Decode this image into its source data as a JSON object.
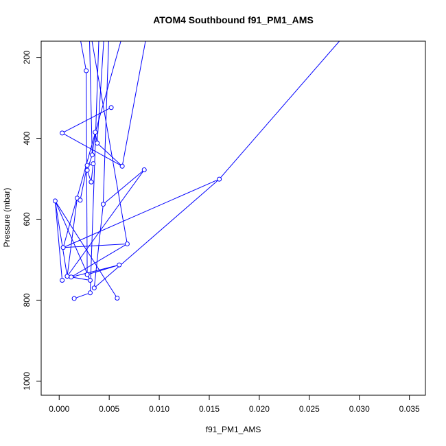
{
  "chart_data": {
    "type": "line",
    "title": "ATOM4 Southbound f91_PM1_AMS",
    "xlabel": "f91_PM1_AMS",
    "ylabel": "Pressure (mbar)",
    "xlim": [
      -0.0018,
      0.0366
    ],
    "ylim": [
      1035,
      160
    ],
    "y_reversed": true,
    "x_ticks": [
      0.0,
      0.005,
      0.01,
      0.015,
      0.02,
      0.025,
      0.03,
      0.035
    ],
    "x_tick_labels": [
      "0.000",
      "0.005",
      "0.010",
      "0.015",
      "0.020",
      "0.025",
      "0.030",
      "0.035"
    ],
    "y_ticks": [
      200,
      400,
      600,
      800,
      1000
    ],
    "y_tick_labels": [
      "200",
      "400",
      "600",
      "800",
      "1000"
    ],
    "grid": false,
    "colors": {
      "series": "#0000ff",
      "frame": "#000000",
      "background": "#ffffff"
    },
    "series": [
      {
        "marker": "open-circle",
        "points": [
          {
            "x": 0.0031,
            "y": 782,
            "marked": true
          },
          {
            "x": 0.0015,
            "y": 796,
            "marked": true
          },
          {
            "x": 0.0003,
            "y": 751,
            "marked": true
          },
          {
            "x": 0.0008,
            "y": 741,
            "marked": true
          },
          {
            "x": 0.0058,
            "y": 795,
            "marked": true
          },
          {
            "x": -0.0004,
            "y": 555,
            "marked": true
          },
          {
            "x": 0.0031,
            "y": 751,
            "marked": true
          },
          {
            "x": 0.0028,
            "y": 737,
            "marked": true
          },
          {
            "x": 0.006,
            "y": 713,
            "marked": true
          },
          {
            "x": 0.0012,
            "y": 743,
            "marked": true
          },
          {
            "x": 0.0068,
            "y": 661,
            "marked": true
          },
          {
            "x": 0.0004,
            "y": 670,
            "marked": true
          },
          {
            "x": 0.016,
            "y": 501,
            "marked": true
          },
          {
            "x": 0.0035,
            "y": 770,
            "marked": true
          },
          {
            "x": 0.0044,
            "y": 563,
            "marked": true
          },
          {
            "x": 0.0085,
            "y": 478,
            "marked": true
          },
          {
            "x": 0.0018,
            "y": 548,
            "marked": true
          },
          {
            "x": 0.0021,
            "y": 553,
            "marked": true
          },
          {
            "x": 0.0028,
            "y": 467,
            "marked": true
          },
          {
            "x": 0.0034,
            "y": 463,
            "marked": true
          },
          {
            "x": 0.0032,
            "y": 508,
            "marked": true
          },
          {
            "x": 0.0028,
            "y": 479,
            "marked": true
          },
          {
            "x": 0.0033,
            "y": 441,
            "marked": true
          },
          {
            "x": 0.0036,
            "y": 385,
            "marked": true
          },
          {
            "x": 0.0038,
            "y": 412,
            "marked": true
          },
          {
            "x": 0.0063,
            "y": 469,
            "marked": true
          },
          {
            "x": 0.0003,
            "y": 387,
            "marked": true
          },
          {
            "x": 0.0052,
            "y": 324,
            "marked": true
          },
          {
            "x": 0.0027,
            "y": 233,
            "marked": true
          },
          {
            "x": 0.002,
            "y": 140,
            "marked": false
          },
          {
            "x": 0.004,
            "y": 130,
            "marked": false
          },
          {
            "x": 0.003,
            "y": 120,
            "marked": false
          },
          {
            "x": 0.0045,
            "y": 140,
            "marked": false
          },
          {
            "x": 0.005,
            "y": 120,
            "marked": false
          },
          {
            "x": 0.009,
            "y": 110,
            "marked": false
          },
          {
            "x": 0.0065,
            "y": 130,
            "marked": false
          },
          {
            "x": 0.028,
            "y": 160,
            "marked": false
          }
        ],
        "segments": [
          [
            0,
            1
          ],
          [
            2,
            5
          ],
          [
            5,
            3
          ],
          [
            5,
            4
          ],
          [
            5,
            6
          ],
          [
            6,
            7
          ],
          [
            7,
            8
          ],
          [
            8,
            9
          ],
          [
            9,
            10
          ],
          [
            10,
            11
          ],
          [
            11,
            12
          ],
          [
            12,
            13
          ],
          [
            13,
            14
          ],
          [
            14,
            15
          ],
          [
            15,
            3
          ],
          [
            3,
            16
          ],
          [
            16,
            17
          ],
          [
            17,
            18
          ],
          [
            18,
            19
          ],
          [
            19,
            20
          ],
          [
            20,
            21
          ],
          [
            21,
            22
          ],
          [
            22,
            23
          ],
          [
            23,
            24
          ],
          [
            24,
            25
          ],
          [
            25,
            26
          ],
          [
            26,
            27
          ],
          [
            7,
            28
          ],
          [
            28,
            29
          ],
          [
            30,
            0
          ],
          [
            31,
            22
          ],
          [
            32,
            24
          ],
          [
            33,
            14
          ],
          [
            34,
            25
          ],
          [
            35,
            11
          ],
          [
            36,
            12
          ],
          [
            31,
            10
          ],
          [
            6,
            9
          ]
        ]
      }
    ]
  }
}
